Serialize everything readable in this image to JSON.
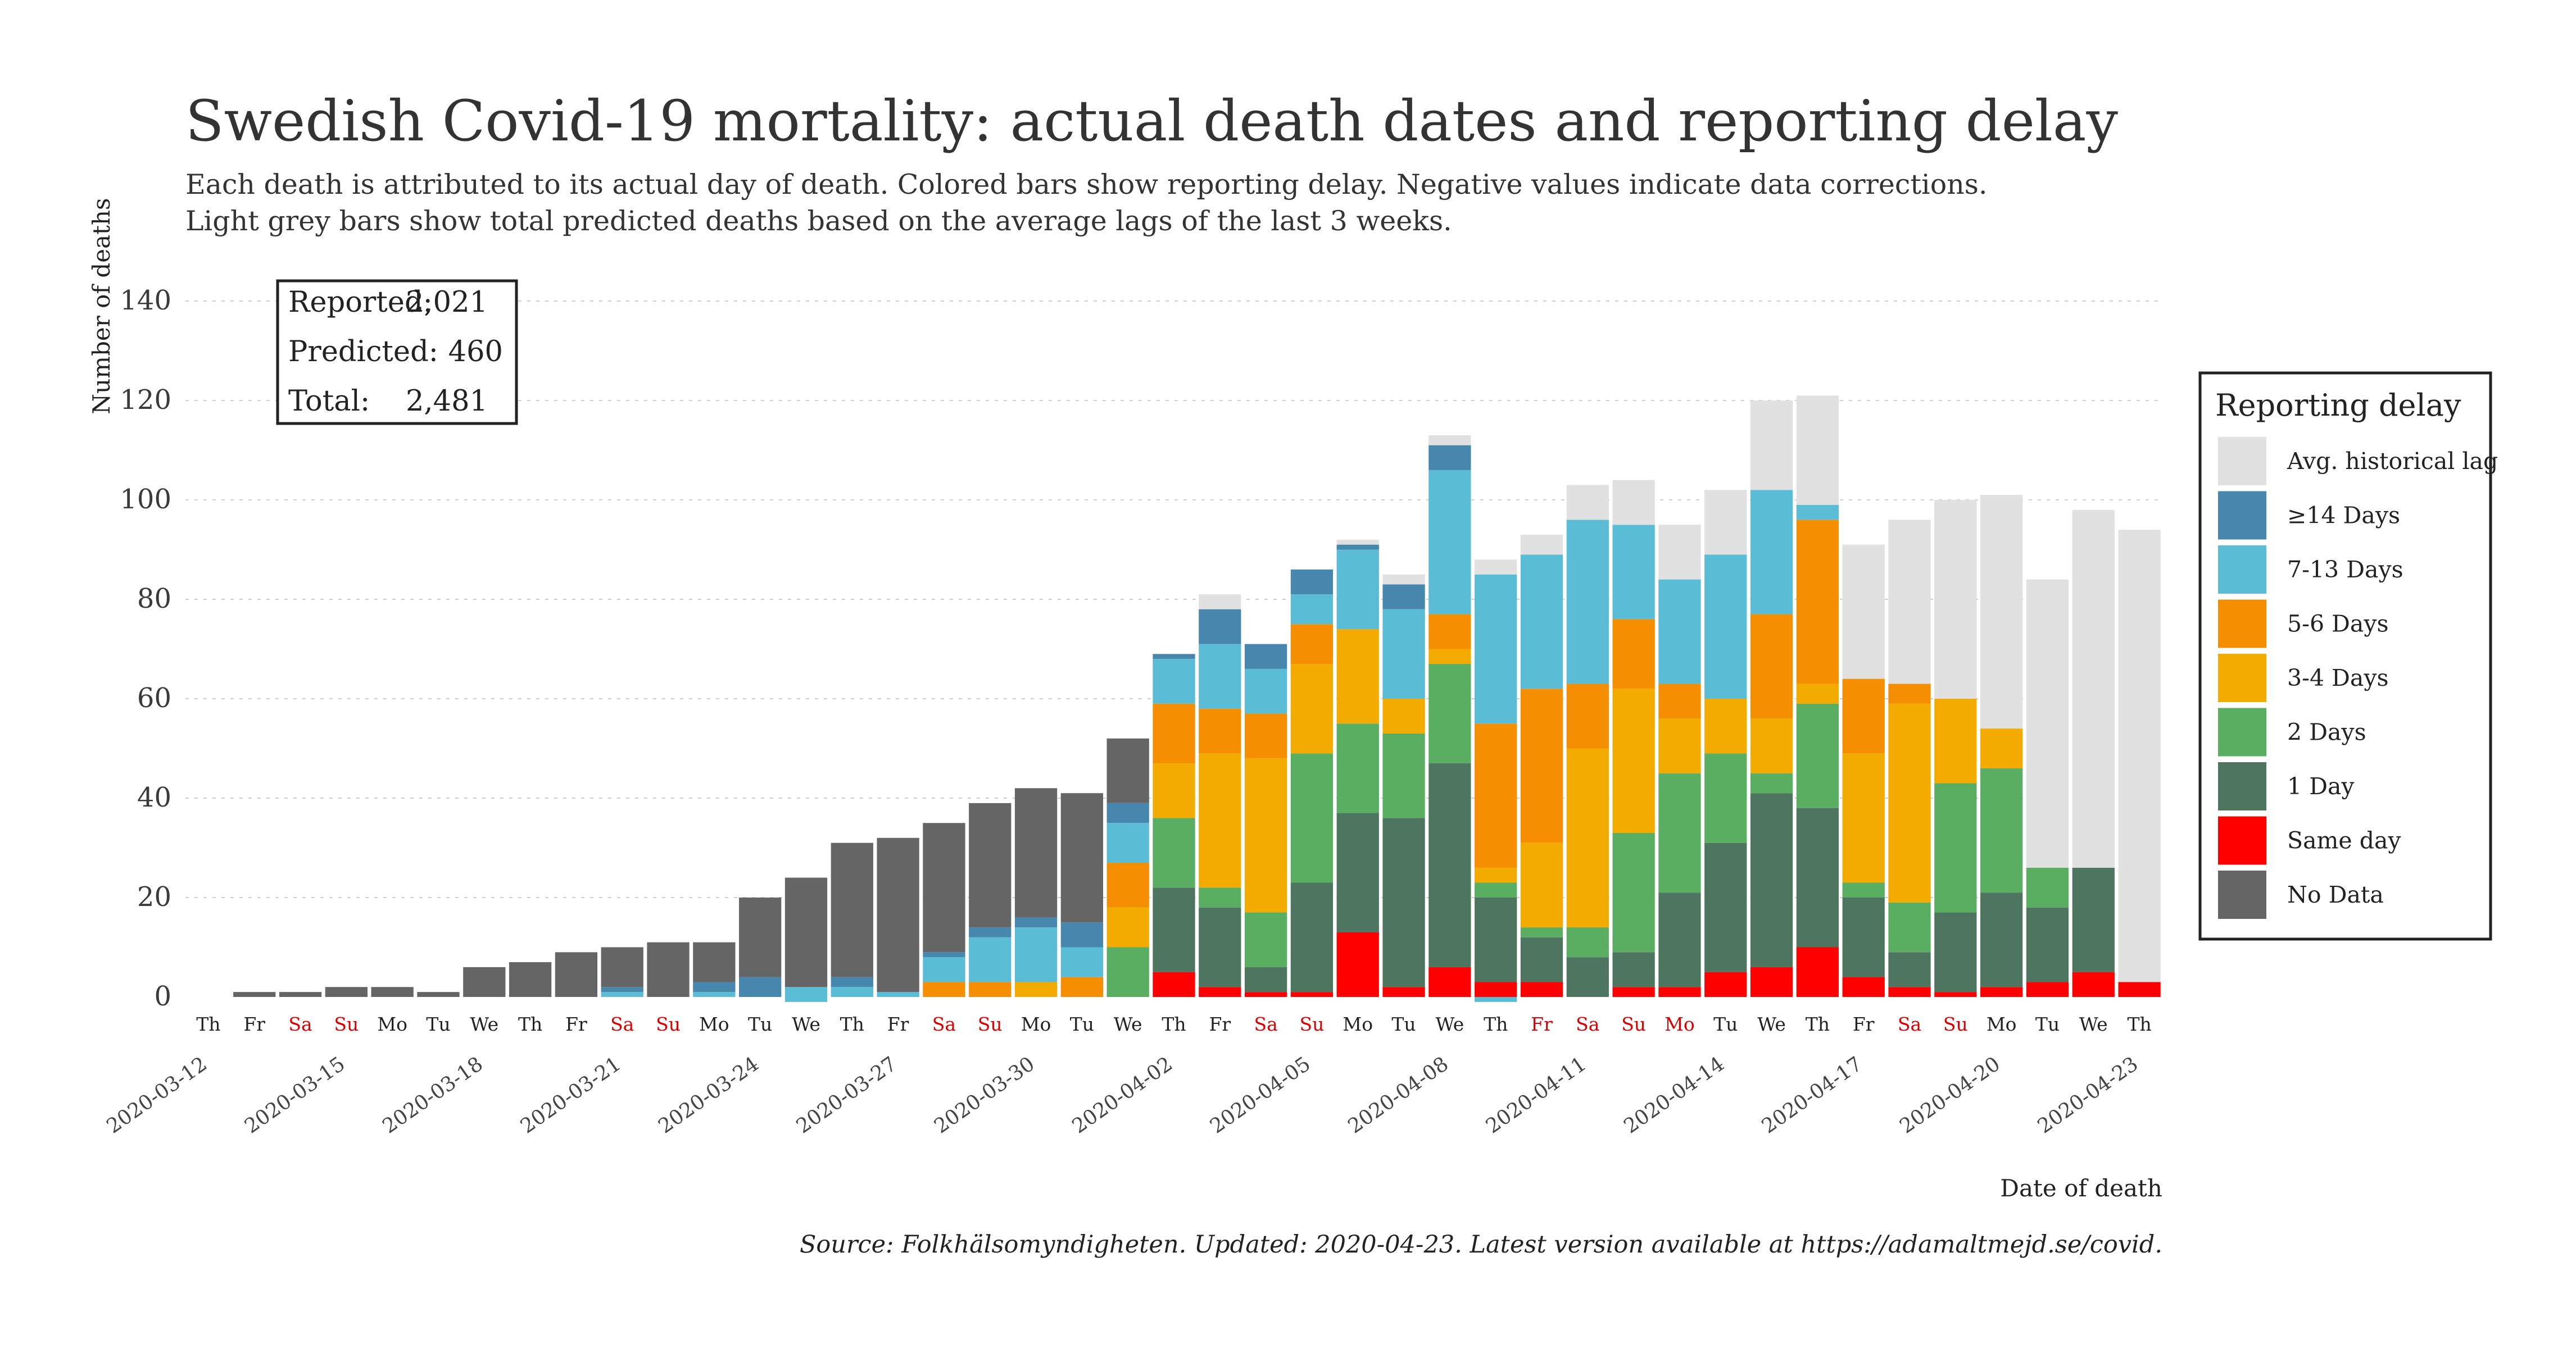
{
  "chart_data": {
    "type": "bar",
    "stacked": true,
    "title": "Swedish Covid-19 mortality: actual death dates and reporting delay",
    "subtitle_lines": [
      "Each death is attributed to its actual day of death. Colored bars show reporting delay. Negative values indicate data corrections.",
      "Light grey bars show total predicted deaths based on the average lags of the last 3 weeks."
    ],
    "ylabel": "Number of deaths",
    "xlabel": "Date of death",
    "ylim": [
      0,
      140
    ],
    "y_ticks": [
      0,
      20,
      40,
      60,
      80,
      100,
      120,
      140
    ],
    "grid": true,
    "legend_position": "right",
    "caption": "Source: Folkhälsomyndigheten. Updated: 2020-04-23. Latest version available at https://adamaltmejd.se/covid.",
    "dates": [
      "2020-03-12",
      "2020-03-13",
      "2020-03-14",
      "2020-03-15",
      "2020-03-16",
      "2020-03-17",
      "2020-03-18",
      "2020-03-19",
      "2020-03-20",
      "2020-03-21",
      "2020-03-22",
      "2020-03-23",
      "2020-03-24",
      "2020-03-25",
      "2020-03-26",
      "2020-03-27",
      "2020-03-28",
      "2020-03-29",
      "2020-03-30",
      "2020-03-31",
      "2020-04-01",
      "2020-04-02",
      "2020-04-03",
      "2020-04-04",
      "2020-04-05",
      "2020-04-06",
      "2020-04-07",
      "2020-04-08",
      "2020-04-09",
      "2020-04-10",
      "2020-04-11",
      "2020-04-12",
      "2020-04-13",
      "2020-04-14",
      "2020-04-15",
      "2020-04-16",
      "2020-04-17",
      "2020-04-18",
      "2020-04-19",
      "2020-04-20",
      "2020-04-21",
      "2020-04-22",
      "2020-04-23"
    ],
    "day_labels": [
      "Th",
      "Fr",
      "Sa",
      "Su",
      "Mo",
      "Tu",
      "We",
      "Th",
      "Fr",
      "Sa",
      "Su",
      "Mo",
      "Tu",
      "We",
      "Th",
      "Fr",
      "Sa",
      "Su",
      "Mo",
      "Tu",
      "We",
      "Th",
      "Fr",
      "Sa",
      "Su",
      "Mo",
      "Tu",
      "We",
      "Th",
      "Fr",
      "Sa",
      "Su",
      "Mo",
      "Tu",
      "We",
      "Th",
      "Fr",
      "Sa",
      "Su",
      "Mo",
      "Tu",
      "We",
      "Th"
    ],
    "red_day_labels": [
      "2020-03-14",
      "2020-03-15",
      "2020-03-21",
      "2020-03-22",
      "2020-03-28",
      "2020-03-29",
      "2020-04-04",
      "2020-04-05",
      "2020-04-10",
      "2020-04-11",
      "2020-04-12",
      "2020-04-13",
      "2020-04-18",
      "2020-04-19"
    ],
    "x_tick_dates": [
      "2020-03-12",
      "2020-03-15",
      "2020-03-18",
      "2020-03-21",
      "2020-03-24",
      "2020-03-27",
      "2020-03-30",
      "2020-04-02",
      "2020-04-05",
      "2020-04-08",
      "2020-04-11",
      "2020-04-14",
      "2020-04-17",
      "2020-04-20",
      "2020-04-23"
    ],
    "series": [
      {
        "name": "Same day",
        "color": "#ff0000",
        "values": [
          0,
          0,
          0,
          0,
          0,
          0,
          0,
          0,
          0,
          0,
          0,
          0,
          0,
          0,
          0,
          0,
          0,
          0,
          0,
          0,
          0,
          5,
          2,
          1,
          1,
          13,
          2,
          6,
          3,
          3,
          0,
          2,
          2,
          5,
          6,
          10,
          4,
          2,
          1,
          2,
          3,
          5,
          3
        ]
      },
      {
        "name": "1 Day",
        "color": "#4e7560",
        "values": [
          0,
          0,
          0,
          0,
          0,
          0,
          0,
          0,
          0,
          0,
          0,
          0,
          0,
          0,
          0,
          0,
          0,
          0,
          0,
          0,
          0,
          17,
          16,
          5,
          22,
          24,
          34,
          41,
          17,
          9,
          8,
          7,
          19,
          26,
          35,
          28,
          16,
          7,
          16,
          19,
          15,
          21,
          0
        ]
      },
      {
        "name": "2 Days",
        "color": "#59ae62",
        "values": [
          0,
          0,
          0,
          0,
          0,
          0,
          0,
          0,
          0,
          0,
          0,
          0,
          0,
          0,
          0,
          0,
          0,
          0,
          0,
          0,
          10,
          14,
          4,
          11,
          26,
          18,
          17,
          20,
          3,
          2,
          6,
          24,
          24,
          18,
          4,
          21,
          3,
          10,
          26,
          25,
          8,
          0,
          0
        ]
      },
      {
        "name": "3-4 Days",
        "color": "#f3ab00",
        "values": [
          0,
          0,
          0,
          0,
          0,
          0,
          0,
          0,
          0,
          0,
          0,
          0,
          0,
          0,
          0,
          0,
          0,
          0,
          3,
          0,
          8,
          11,
          27,
          31,
          18,
          19,
          7,
          3,
          3,
          17,
          36,
          29,
          11,
          11,
          11,
          4,
          26,
          40,
          17,
          8,
          0,
          0,
          0
        ]
      },
      {
        "name": "5-6 Days",
        "color": "#f58e00",
        "values": [
          0,
          0,
          0,
          0,
          0,
          0,
          0,
          0,
          0,
          0,
          0,
          0,
          0,
          0,
          0,
          0,
          3,
          3,
          0,
          4,
          9,
          12,
          9,
          9,
          8,
          0,
          0,
          7,
          29,
          31,
          13,
          14,
          7,
          0,
          21,
          33,
          15,
          4,
          0,
          0,
          0,
          0,
          0
        ]
      },
      {
        "name": "7-13 Days",
        "color": "#5bbcd6",
        "values": [
          0,
          0,
          0,
          0,
          0,
          0,
          0,
          0,
          0,
          1,
          0,
          1,
          0,
          2,
          2,
          1,
          5,
          9,
          11,
          6,
          8,
          9,
          13,
          9,
          6,
          16,
          18,
          29,
          30,
          27,
          33,
          19,
          21,
          29,
          25,
          3,
          0,
          0,
          0,
          0,
          0,
          0,
          0
        ]
      },
      {
        "name": "≥14 Days",
        "color": "#4787ad",
        "values": [
          0,
          0,
          0,
          0,
          0,
          0,
          0,
          0,
          0,
          1,
          0,
          2,
          4,
          0,
          2,
          0,
          1,
          2,
          2,
          5,
          4,
          1,
          7,
          5,
          5,
          1,
          5,
          5,
          0,
          0,
          0,
          0,
          0,
          0,
          0,
          0,
          0,
          0,
          0,
          0,
          0,
          0,
          0
        ]
      },
      {
        "name": "No Data",
        "color": "#656565",
        "values": [
          0,
          1,
          1,
          2,
          2,
          1,
          6,
          7,
          9,
          8,
          11,
          8,
          16,
          22,
          27,
          31,
          26,
          25,
          26,
          26,
          13,
          0,
          0,
          0,
          0,
          0,
          0,
          0,
          0,
          0,
          0,
          0,
          0,
          0,
          0,
          0,
          0,
          0,
          0,
          0,
          0,
          0,
          0
        ]
      },
      {
        "name": "Avg. historical lag",
        "color": "#e1e1e1",
        "values": [
          0,
          0,
          0,
          0,
          0,
          0,
          0,
          0,
          0,
          0,
          0,
          0,
          0,
          0,
          0,
          0,
          0,
          0,
          0,
          0,
          0,
          0,
          3,
          0,
          0,
          1,
          2,
          2,
          3,
          4,
          7,
          9,
          11,
          13,
          18,
          22,
          27,
          33,
          40,
          47,
          58,
          72,
          91
        ]
      }
    ],
    "negative_values": [
      {
        "date": "2020-03-25",
        "series": "7-13 Days",
        "value": -1
      },
      {
        "date": "2020-04-09",
        "series": "7-13 Days",
        "value": -1
      }
    ],
    "summary_box": {
      "reported_label": "Reported:",
      "reported_value": "2,021",
      "predicted_label": "Predicted:",
      "predicted_value": "460",
      "total_label": "Total:",
      "total_value": "2,481"
    },
    "legend": {
      "title": "Reporting delay",
      "items": [
        "Avg. historical lag",
        "≥14 Days",
        "7-13 Days",
        "5-6 Days",
        "3-4 Days",
        "2 Days",
        "1 Day",
        "Same day",
        "No Data"
      ]
    }
  }
}
